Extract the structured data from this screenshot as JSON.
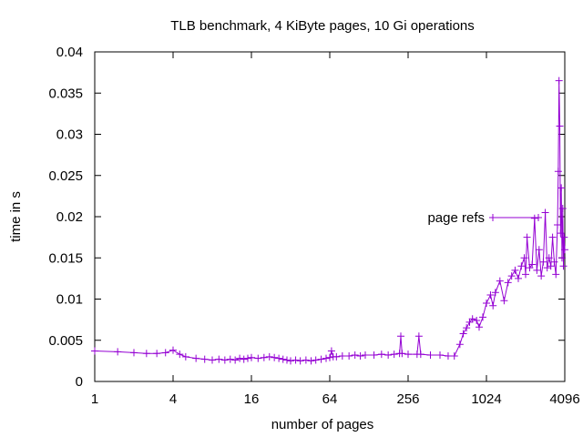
{
  "chart_data": {
    "type": "line",
    "title": "TLB benchmark, 4 KiByte pages, 10 Gi operations",
    "xlabel": "number of pages",
    "ylabel": "time in s",
    "xscale": "log2",
    "xlim": [
      1,
      4096
    ],
    "ylim": [
      0,
      0.04
    ],
    "xticks": [
      {
        "value": 1,
        "label": "1"
      },
      {
        "value": 4,
        "label": "4"
      },
      {
        "value": 16,
        "label": "16"
      },
      {
        "value": 64,
        "label": "64"
      },
      {
        "value": 256,
        "label": "256"
      },
      {
        "value": 1024,
        "label": "1024"
      },
      {
        "value": 4096,
        "label": "4096"
      }
    ],
    "yticks": [
      {
        "value": 0,
        "label": "0"
      },
      {
        "value": 0.005,
        "label": "0.005"
      },
      {
        "value": 0.01,
        "label": "0.01"
      },
      {
        "value": 0.015,
        "label": "0.015"
      },
      {
        "value": 0.02,
        "label": "0.02"
      },
      {
        "value": 0.025,
        "label": "0.025"
      },
      {
        "value": 0.03,
        "label": "0.03"
      },
      {
        "value": 0.035,
        "label": "0.035"
      },
      {
        "value": 0.04,
        "label": "0.04"
      }
    ],
    "grid": false,
    "legend_position": "top-right inside plot",
    "series": [
      {
        "name": "page refs",
        "color": "#9400d3",
        "marker": "plus",
        "points": [
          [
            1,
            0.0037
          ],
          [
            1.5,
            0.0036
          ],
          [
            2,
            0.0035
          ],
          [
            2.5,
            0.0034
          ],
          [
            3,
            0.0034
          ],
          [
            3.5,
            0.0035
          ],
          [
            4,
            0.0038
          ],
          [
            4.5,
            0.0033
          ],
          [
            5,
            0.003
          ],
          [
            6,
            0.0028
          ],
          [
            7,
            0.0027
          ],
          [
            8,
            0.0026
          ],
          [
            9,
            0.0027
          ],
          [
            10,
            0.0026
          ],
          [
            11,
            0.0027
          ],
          [
            12,
            0.0026
          ],
          [
            13,
            0.0028
          ],
          [
            14,
            0.0027
          ],
          [
            15,
            0.0028
          ],
          [
            16,
            0.0029
          ],
          [
            18,
            0.0028
          ],
          [
            20,
            0.0029
          ],
          [
            22,
            0.003
          ],
          [
            24,
            0.0029
          ],
          [
            26,
            0.0028
          ],
          [
            28,
            0.0027
          ],
          [
            30,
            0.0026
          ],
          [
            32,
            0.0025
          ],
          [
            35,
            0.0026
          ],
          [
            38,
            0.0025
          ],
          [
            42,
            0.0026
          ],
          [
            46,
            0.0025
          ],
          [
            50,
            0.0026
          ],
          [
            55,
            0.0027
          ],
          [
            60,
            0.0028
          ],
          [
            64,
            0.0029
          ],
          [
            66,
            0.0037
          ],
          [
            68,
            0.003
          ],
          [
            72,
            0.003
          ],
          [
            80,
            0.0031
          ],
          [
            90,
            0.0031
          ],
          [
            100,
            0.0032
          ],
          [
            110,
            0.0031
          ],
          [
            120,
            0.0032
          ],
          [
            140,
            0.0032
          ],
          [
            160,
            0.0033
          ],
          [
            180,
            0.0032
          ],
          [
            200,
            0.0033
          ],
          [
            220,
            0.0034
          ],
          [
            225,
            0.0055
          ],
          [
            230,
            0.0034
          ],
          [
            256,
            0.0033
          ],
          [
            300,
            0.0033
          ],
          [
            310,
            0.0055
          ],
          [
            320,
            0.0033
          ],
          [
            380,
            0.0032
          ],
          [
            450,
            0.0032
          ],
          [
            520,
            0.0031
          ],
          [
            580,
            0.0031
          ],
          [
            640,
            0.0045
          ],
          [
            680,
            0.0058
          ],
          [
            720,
            0.0065
          ],
          [
            760,
            0.0072
          ],
          [
            800,
            0.0076
          ],
          [
            860,
            0.0074
          ],
          [
            900,
            0.0066
          ],
          [
            960,
            0.0078
          ],
          [
            1024,
            0.0095
          ],
          [
            1100,
            0.0105
          ],
          [
            1150,
            0.0092
          ],
          [
            1200,
            0.0108
          ],
          [
            1300,
            0.0122
          ],
          [
            1400,
            0.0098
          ],
          [
            1500,
            0.012
          ],
          [
            1600,
            0.0128
          ],
          [
            1700,
            0.0135
          ],
          [
            1800,
            0.0125
          ],
          [
            1900,
            0.014
          ],
          [
            2000,
            0.015
          ],
          [
            2048,
            0.013
          ],
          [
            2100,
            0.0175
          ],
          [
            2200,
            0.0138
          ],
          [
            2300,
            0.0142
          ],
          [
            2400,
            0.0198
          ],
          [
            2500,
            0.0135
          ],
          [
            2600,
            0.016
          ],
          [
            2700,
            0.0128
          ],
          [
            2800,
            0.0145
          ],
          [
            2900,
            0.0205
          ],
          [
            3000,
            0.0138
          ],
          [
            3100,
            0.015
          ],
          [
            3200,
            0.014
          ],
          [
            3300,
            0.0175
          ],
          [
            3400,
            0.0145
          ],
          [
            3500,
            0.013
          ],
          [
            3600,
            0.019
          ],
          [
            3650,
            0.0255
          ],
          [
            3700,
            0.0365
          ],
          [
            3750,
            0.031
          ],
          [
            3800,
            0.018
          ],
          [
            3850,
            0.0235
          ],
          [
            3900,
            0.015
          ],
          [
            3950,
            0.021
          ],
          [
            4000,
            0.014
          ],
          [
            4050,
            0.0175
          ],
          [
            4096,
            0.016
          ]
        ]
      }
    ]
  }
}
